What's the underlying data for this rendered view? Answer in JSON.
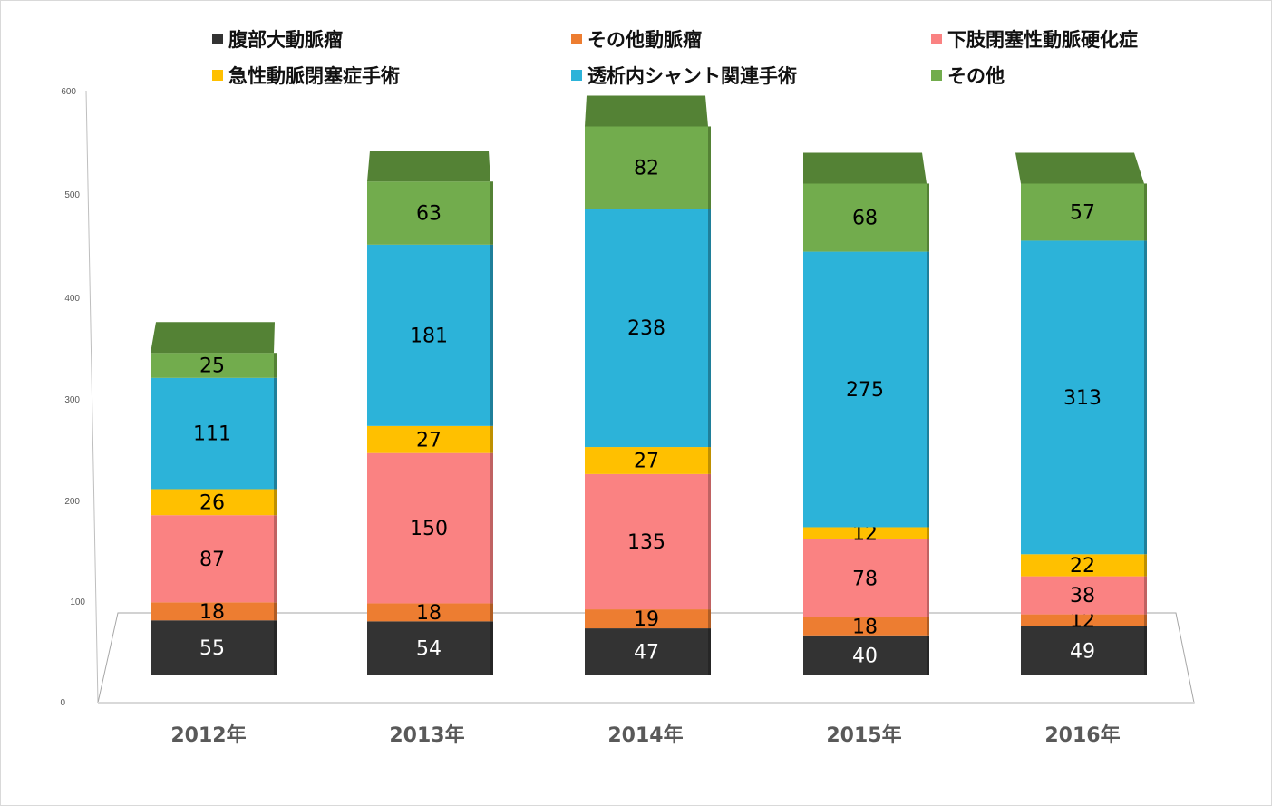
{
  "chart_data": {
    "type": "bar",
    "stacked": true,
    "style": "3d",
    "title": "",
    "xlabel": "",
    "ylabel": "",
    "ylim": [
      0,
      600
    ],
    "yticks": [
      "0",
      "100",
      "200",
      "300",
      "400",
      "500",
      "600"
    ],
    "grid": false,
    "legend_position": "top",
    "categories": [
      "2012年",
      "2013年",
      "2014年",
      "2015年",
      "2016年"
    ],
    "series": [
      {
        "name": "腹部大動脈瘤",
        "color": "#333333",
        "top_color": "#262626",
        "label_color": "#ffffff",
        "values": [
          55,
          54,
          47,
          40,
          49
        ]
      },
      {
        "name": "その他動脈瘤",
        "color": "#ed7d31",
        "top_color": "#b05d24",
        "label_color": "#000000",
        "values": [
          18,
          18,
          19,
          18,
          12
        ]
      },
      {
        "name": "下肢閉塞性動脈硬化症",
        "color": "#fa8282",
        "top_color": "#c06262",
        "label_color": "#000000",
        "values": [
          87,
          150,
          135,
          78,
          38
        ]
      },
      {
        "name": "急性動脈閉塞症手術",
        "color": "#ffc000",
        "top_color": "#bf9000",
        "label_color": "#000000",
        "values": [
          26,
          27,
          27,
          12,
          22
        ]
      },
      {
        "name": "透析内シャント関連手術",
        "color": "#2cb3d9",
        "top_color": "#1f7f9a",
        "label_color": "#000000",
        "values": [
          111,
          181,
          238,
          275,
          313
        ]
      },
      {
        "name": "その他",
        "color": "#72ac4d",
        "top_color": "#548235",
        "label_color": "#000000",
        "values": [
          25,
          63,
          82,
          68,
          57
        ]
      }
    ]
  }
}
